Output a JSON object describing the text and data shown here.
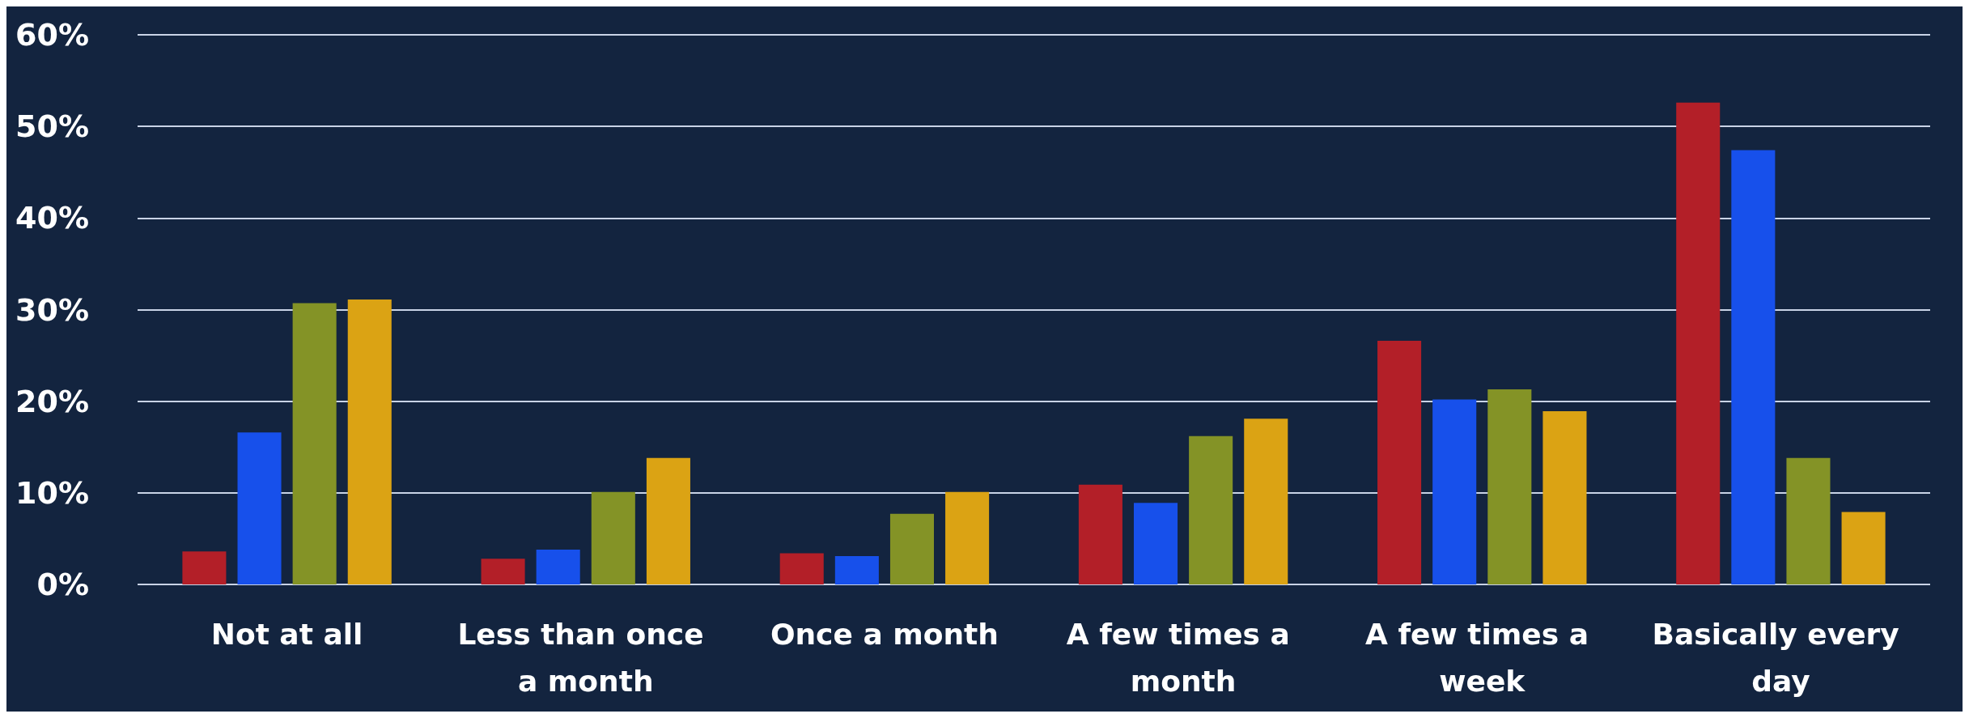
{
  "chart_data": {
    "type": "bar",
    "categories": [
      "Not at all",
      "Less than once a month",
      "Once a month",
      "A few times a month",
      "A few times a week",
      "Basically every day"
    ],
    "series": [
      {
        "color": "#b31f28",
        "values": [
          3.6,
          2.8,
          3.4,
          10.9,
          26.6,
          52.6
        ]
      },
      {
        "color": "#1750eb",
        "values": [
          16.6,
          3.8,
          3.1,
          8.9,
          20.2,
          47.4
        ]
      },
      {
        "color": "#849326",
        "values": [
          30.7,
          10.1,
          7.7,
          16.2,
          21.3,
          13.8
        ]
      },
      {
        "color": "#dba314",
        "values": [
          31.1,
          13.8,
          10.1,
          18.1,
          18.9,
          7.9
        ]
      }
    ],
    "ylim": [
      0,
      60
    ],
    "yticks": [
      {
        "value": 0,
        "label": "0%"
      },
      {
        "value": 10,
        "label": "10%"
      },
      {
        "value": 20,
        "label": "20%"
      },
      {
        "value": 30,
        "label": "30%"
      },
      {
        "value": 40,
        "label": "40%"
      },
      {
        "value": 50,
        "label": "50%"
      },
      {
        "value": 60,
        "label": "60%"
      }
    ],
    "grid": "y"
  }
}
